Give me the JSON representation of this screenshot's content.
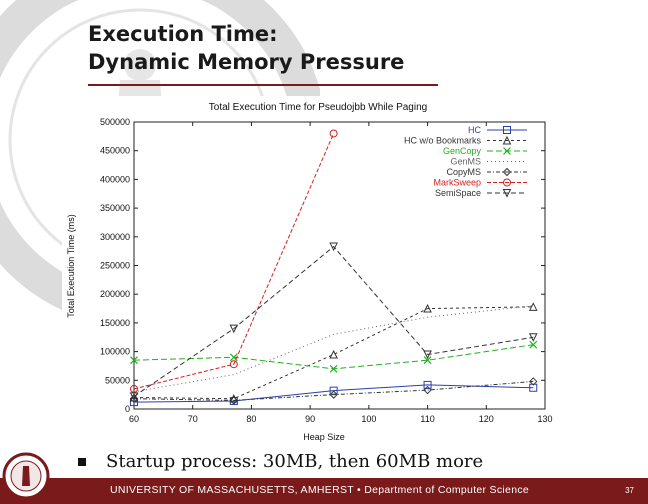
{
  "slide": {
    "title_line1": "Execution Time:",
    "title_line2": "Dynamic Memory Pressure",
    "bullet": "Startup process: 30MB, then 60MB more",
    "footer": "UNIVERSITY OF MASSACHUSETTS, AMHERST • Department of Computer Science",
    "page_number": "37"
  },
  "colors": {
    "footer_bar": "#7a1a1a",
    "seal_watermark": "#d9d9d9"
  },
  "chart_data": {
    "type": "line",
    "title": "Total Execution Time for Pseudojbb While Paging",
    "xlabel": "Heap Size",
    "ylabel": "Total Execution Time (ms)",
    "xlim": [
      60,
      130
    ],
    "ylim": [
      0,
      500000
    ],
    "xticks": [
      "60",
      "70",
      "80",
      "90",
      "100",
      "110",
      "120",
      "130"
    ],
    "yticks": [
      "0",
      "50000",
      "100000",
      "150000",
      "200000",
      "250000",
      "300000",
      "350000",
      "400000",
      "450000",
      "500000"
    ],
    "grid": false,
    "legend_position": "top-right",
    "series": [
      {
        "name": "HC",
        "color": "#2b3fb0",
        "marker": "square",
        "dash": "",
        "x": [
          60,
          77,
          94,
          110,
          128
        ],
        "y": [
          12000,
          14000,
          32000,
          42000,
          37000
        ]
      },
      {
        "name": "HC w/o Bookmarks",
        "color": "#333333",
        "marker": "triangle",
        "dash": "3,3",
        "x": [
          60,
          77,
          94,
          110,
          128
        ],
        "y": [
          20000,
          18000,
          95000,
          175000,
          178000
        ]
      },
      {
        "name": "GenCopy",
        "color": "#22b022",
        "marker": "x",
        "dash": "6,3",
        "x": [
          60,
          77,
          94,
          110,
          128
        ],
        "y": [
          85000,
          90000,
          70000,
          85000,
          112000
        ]
      },
      {
        "name": "GenMS",
        "color": "#666666",
        "marker": "none",
        "dash": "1,3",
        "x": [
          60,
          77,
          94,
          110,
          128
        ],
        "y": [
          30000,
          60000,
          130000,
          160000,
          180000
        ]
      },
      {
        "name": "CopyMS",
        "color": "#333333",
        "marker": "diamond",
        "dash": "4,2,1,2",
        "x": [
          60,
          77,
          94,
          110,
          128
        ],
        "y": [
          18000,
          15000,
          25000,
          33000,
          48000
        ]
      },
      {
        "name": "MarkSweep",
        "color": "#d42020",
        "marker": "circle",
        "dash": "4,2",
        "x": [
          60,
          77,
          94
        ],
        "y": [
          35000,
          78000,
          480000
        ]
      },
      {
        "name": "SemiSpace",
        "color": "#333333",
        "marker": "triangle-down",
        "dash": "5,3",
        "x": [
          60,
          77,
          94,
          110,
          128
        ],
        "y": [
          22000,
          140000,
          283000,
          95000,
          125000
        ]
      }
    ]
  }
}
